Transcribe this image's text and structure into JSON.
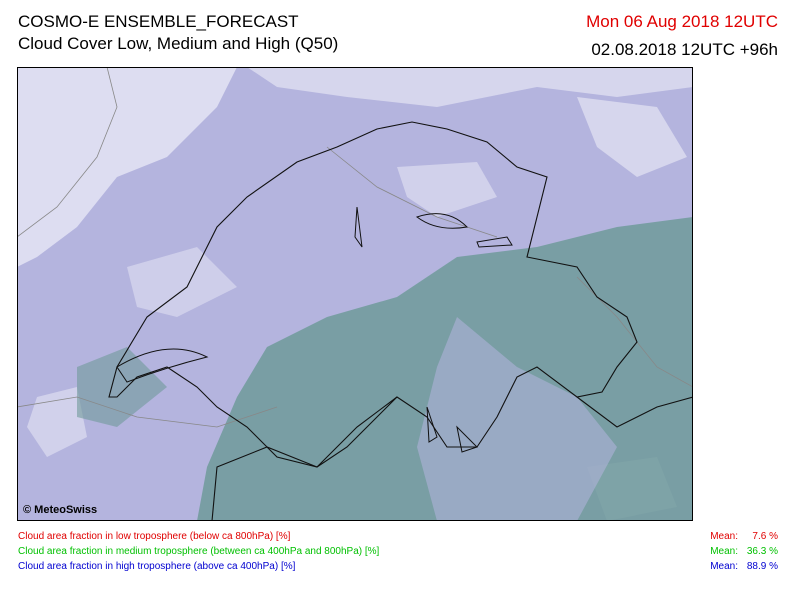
{
  "header": {
    "title": "COSMO-E ENSEMBLE_FORECAST",
    "subtitle": "Cloud Cover Low, Medium and High (Q50)",
    "valid_time": "Mon 06 Aug 2018 12UTC",
    "run": "02.08.2018 12UTC +96h"
  },
  "map": {
    "copyright": "© MeteoSwiss"
  },
  "legend": [
    {
      "text": "Cloud area fraction in low troposphere (below ca 800hPa) [%]",
      "mean_label": "Mean:",
      "mean": "7.6 %"
    },
    {
      "text": "Cloud area fraction in medium troposphere (between ca 400hPa and 800hPa) [%]",
      "mean_label": "Mean:",
      "mean": "36.3 %"
    },
    {
      "text": "Cloud area fraction in high troposphere (above ca 400hPa) [%]",
      "mean_label": "Mean:",
      "mean": "88.9 %"
    }
  ]
}
